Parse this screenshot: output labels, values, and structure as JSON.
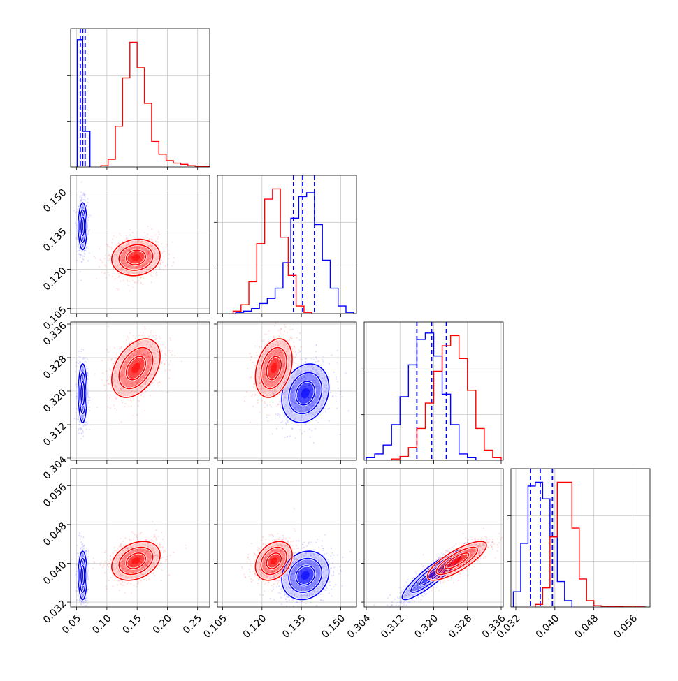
{
  "chart_data": {
    "type": "scatter",
    "subtype": "corner plot",
    "title": "",
    "grid": true,
    "colors": {
      "series_a": "#0000ff",
      "series_b": "#ff0000"
    },
    "parameters": [
      {
        "range": [
          0.04,
          0.27
        ],
        "ticks": [
          0.05,
          0.1,
          0.15,
          0.2,
          0.25
        ],
        "tick_labels": [
          "0.05",
          "0.10",
          "0.15",
          "0.20",
          "0.25"
        ]
      },
      {
        "range": [
          0.103,
          0.156
        ],
        "ticks": [
          0.105,
          0.12,
          0.135,
          0.15
        ],
        "tick_labels": [
          "0.105",
          "0.120",
          "0.135",
          "0.150"
        ]
      },
      {
        "range": [
          0.3035,
          0.3365
        ],
        "ticks": [
          0.304,
          0.312,
          0.32,
          0.328,
          0.336
        ],
        "tick_labels": [
          "0.304",
          "0.312",
          "0.320",
          "0.328",
          "0.336"
        ]
      },
      {
        "range": [
          0.031,
          0.0595
        ],
        "ticks": [
          0.032,
          0.04,
          0.048,
          0.056
        ],
        "tick_labels": [
          "0.032",
          "0.040",
          "0.048",
          "0.056"
        ]
      }
    ],
    "series": [
      {
        "key": "a",
        "color": "#0000ff",
        "mean": [
          0.06,
          0.1365,
          0.3195,
          0.0375
        ],
        "sd": [
          0.0035,
          0.0045,
          0.0035,
          0.0025
        ],
        "corr": [
          [
            1,
            0,
            0,
            0
          ],
          [
            0,
            1,
            0.2,
            0.15
          ],
          [
            0,
            0.2,
            1,
            0.9
          ],
          [
            0,
            0.15,
            0.9,
            1
          ]
        ],
        "quantiles": [
          [
            0.056,
            0.06,
            0.064
          ],
          [
            0.132,
            0.1355,
            0.14
          ],
          [
            0.316,
            0.3195,
            0.323
          ],
          [
            0.035,
            0.037,
            0.0395
          ]
        ],
        "histograms": [
          {
            "edges": [
              0.051,
              0.06,
              0.072
            ],
            "counts": [
              1.0,
              0.28
            ]
          },
          {
            "edges": [
              0.11,
              0.113,
              0.116,
              0.119,
              0.122,
              0.125,
              0.128,
              0.131,
              0.134,
              0.137,
              0.14,
              0.143,
              0.146,
              0.149,
              0.152,
              0.155
            ],
            "counts": [
              0.01,
              0.02,
              0.04,
              0.08,
              0.12,
              0.2,
              0.4,
              0.75,
              0.92,
              0.95,
              0.7,
              0.42,
              0.2,
              0.06,
              0.01
            ]
          },
          {
            "edges": [
              0.304,
              0.306,
              0.308,
              0.31,
              0.312,
              0.314,
              0.316,
              0.318,
              0.32,
              0.322,
              0.324,
              0.326,
              0.328,
              0.33
            ],
            "counts": [
              0.02,
              0.05,
              0.12,
              0.28,
              0.5,
              0.75,
              0.95,
              1.0,
              0.82,
              0.52,
              0.28,
              0.05,
              0.02
            ]
          },
          {
            "edges": [
              0.0315,
              0.033,
              0.0345,
              0.036,
              0.0375,
              0.039,
              0.0405,
              0.042,
              0.0435
            ],
            "counts": [
              0.12,
              0.5,
              0.95,
              0.98,
              0.85,
              0.55,
              0.2,
              0.05
            ]
          }
        ]
      },
      {
        "key": "b",
        "color": "#ff0000",
        "mean": [
          0.148,
          0.1245,
          0.3255,
          0.0405
        ],
        "sd": [
          0.02,
          0.0035,
          0.0035,
          0.002
        ],
        "corr": [
          [
            1,
            0.1,
            0.4,
            0.3
          ],
          [
            0.1,
            1,
            0.3,
            0.3
          ],
          [
            0.4,
            0.3,
            1,
            0.8
          ],
          [
            0.3,
            0.3,
            0.8,
            1
          ]
        ],
        "quantiles": [],
        "histograms": [
          {
            "edges": [
              0.09,
              0.102,
              0.114,
              0.126,
              0.138,
              0.15,
              0.162,
              0.174,
              0.186,
              0.198,
              0.21,
              0.222,
              0.234,
              0.246,
              0.258,
              0.27
            ],
            "counts": [
              0.01,
              0.06,
              0.32,
              0.7,
              0.98,
              0.78,
              0.5,
              0.2,
              0.1,
              0.05,
              0.03,
              0.02,
              0.01,
              0.005,
              0.003
            ]
          },
          {
            "edges": [
              0.109,
              0.112,
              0.115,
              0.118,
              0.121,
              0.124,
              0.127,
              0.13,
              0.133,
              0.136,
              0.139
            ],
            "counts": [
              0.02,
              0.07,
              0.25,
              0.55,
              0.9,
              0.98,
              0.6,
              0.3,
              0.06,
              0.01
            ]
          },
          {
            "edges": [
              0.31,
              0.312,
              0.314,
              0.316,
              0.318,
              0.32,
              0.322,
              0.324,
              0.326,
              0.328,
              0.33,
              0.332,
              0.334,
              0.336
            ],
            "counts": [
              0.01,
              0.03,
              0.1,
              0.25,
              0.45,
              0.7,
              0.9,
              0.98,
              0.8,
              0.55,
              0.25,
              0.08,
              0.02
            ]
          },
          {
            "edges": [
              0.036,
              0.0375,
              0.039,
              0.0405,
              0.042,
              0.0435,
              0.045,
              0.0465,
              0.048,
              0.0495,
              0.051,
              0.0525,
              0.054,
              0.0555,
              0.057,
              0.0585
            ],
            "counts": [
              0.02,
              0.15,
              0.55,
              0.98,
              0.98,
              0.62,
              0.22,
              0.05,
              0.01,
              0.005,
              0.003,
              0.002,
              0.001,
              0.001,
              0.001
            ]
          }
        ]
      }
    ]
  }
}
